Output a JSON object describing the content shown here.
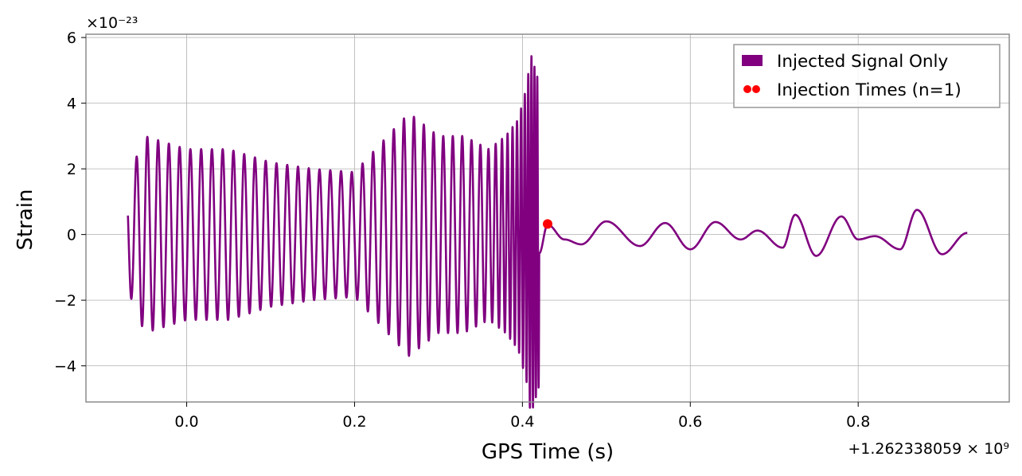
{
  "chart_data": {
    "type": "line",
    "title": "",
    "xlabel": "GPS Time (s)",
    "ylabel": "Strain",
    "x_offset_label": "+1.262338059 × 10⁹",
    "y_scale_label": "×10⁻²³",
    "xlim": [
      -0.12,
      0.98
    ],
    "ylim": [
      -5.1,
      6.1
    ],
    "x_ticks": [
      0.0,
      0.2,
      0.4,
      0.6,
      0.8
    ],
    "x_tick_labels": [
      "0.0",
      "0.2",
      "0.4",
      "0.6",
      "0.8"
    ],
    "y_ticks": [
      -4,
      -2,
      0,
      2,
      4,
      6
    ],
    "y_tick_labels": [
      "−4",
      "−2",
      "0",
      "2",
      "4",
      "6"
    ],
    "grid": true,
    "legend_position": "top-right",
    "series": [
      {
        "name": "Injected Signal Only",
        "kind": "line",
        "color": "#800080",
        "x_range": [
          -0.07,
          0.93
        ],
        "merger_time": 0.43,
        "envelope": {
          "x": [
            -0.07,
            -0.05,
            0.0,
            0.05,
            0.1,
            0.15,
            0.2,
            0.25,
            0.265,
            0.3,
            0.33,
            0.36,
            0.38,
            0.395,
            0.405,
            0.41,
            0.42
          ],
          "amplitude": [
            1.7,
            3.0,
            2.6,
            2.6,
            2.2,
            2.0,
            1.9,
            3.3,
            3.7,
            3.0,
            3.0,
            2.6,
            3.0,
            3.5,
            4.5,
            5.5,
            4.6
          ]
        },
        "ringdown_points": {
          "x": [
            0.43,
            0.45,
            0.47,
            0.5,
            0.54,
            0.57,
            0.6,
            0.63,
            0.66,
            0.68,
            0.71,
            0.725,
            0.75,
            0.78,
            0.8,
            0.82,
            0.85,
            0.87,
            0.9,
            0.93
          ],
          "y": [
            0.3,
            -0.15,
            -0.3,
            0.4,
            -0.35,
            0.35,
            -0.45,
            0.38,
            -0.15,
            0.12,
            -0.4,
            0.6,
            -0.65,
            0.55,
            -0.15,
            -0.05,
            -0.45,
            0.75,
            -0.6,
            0.05
          ]
        }
      },
      {
        "name": "Injection Times (n=1)",
        "kind": "scatter",
        "color": "#ff0000",
        "points": [
          {
            "x": 0.43,
            "y": 0.32
          }
        ]
      }
    ]
  }
}
